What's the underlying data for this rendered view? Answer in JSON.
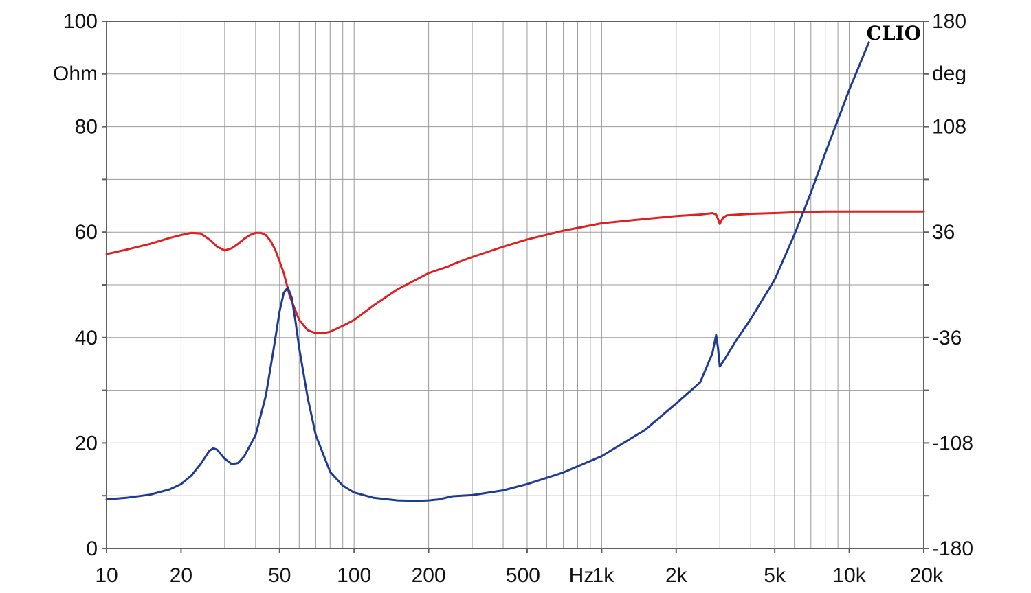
{
  "chart_data": {
    "type": "line",
    "watermark": "CLIO",
    "title": "",
    "x_axis": {
      "scale": "log",
      "range": [
        10,
        20000
      ],
      "unit_label": "Hz",
      "ticks": [
        {
          "value": 10,
          "label": "10"
        },
        {
          "value": 20,
          "label": "20"
        },
        {
          "value": 50,
          "label": "50"
        },
        {
          "value": 100,
          "label": "100"
        },
        {
          "value": 200,
          "label": "200"
        },
        {
          "value": 500,
          "label": "500"
        },
        {
          "value": 1000,
          "label": "1k"
        },
        {
          "value": 2000,
          "label": "2k"
        },
        {
          "value": 5000,
          "label": "5k"
        },
        {
          "value": 10000,
          "label": "10k"
        },
        {
          "value": 20000,
          "label": "20k"
        }
      ]
    },
    "y_left": {
      "unit_label": "Ohm",
      "range": [
        0,
        100
      ],
      "ticks": [
        {
          "value": 0,
          "label": "0"
        },
        {
          "value": 20,
          "label": "20"
        },
        {
          "value": 40,
          "label": "40"
        },
        {
          "value": 60,
          "label": "60"
        },
        {
          "value": 80,
          "label": "80"
        },
        {
          "value": 100,
          "label": "100"
        }
      ]
    },
    "y_right": {
      "unit_label": "deg",
      "range": [
        -180,
        180
      ],
      "ticks": [
        {
          "value": -180,
          "label": "-180"
        },
        {
          "value": -108,
          "label": "-108"
        },
        {
          "value": -36,
          "label": "-36"
        },
        {
          "value": 36,
          "label": "36"
        },
        {
          "value": 108,
          "label": "108"
        },
        {
          "value": 180,
          "label": "180"
        }
      ]
    },
    "grid": true,
    "series": [
      {
        "axis": "left",
        "color": "#1f3a93",
        "x": [
          10,
          12,
          15,
          18,
          20,
          22,
          24,
          26,
          27,
          28,
          30,
          32,
          34,
          36,
          40,
          44,
          47,
          50,
          52,
          54,
          56,
          58,
          60,
          65,
          70,
          80,
          90,
          100,
          120,
          150,
          180,
          200,
          220,
          250,
          300,
          400,
          500,
          700,
          1000,
          1500,
          2000,
          2500,
          2800,
          2900,
          2950,
          3000,
          3100,
          3500,
          4000,
          5000,
          6000,
          7000,
          8000,
          10000,
          12000
        ],
        "y": [
          9.3,
          9.6,
          10.2,
          11.2,
          12.2,
          13.8,
          16.0,
          18.5,
          19.0,
          18.7,
          17.0,
          16.0,
          16.2,
          17.5,
          21.5,
          29.0,
          37.0,
          45.0,
          48.5,
          49.5,
          47.5,
          43.0,
          38.0,
          28.5,
          21.5,
          14.5,
          11.9,
          10.6,
          9.6,
          9.1,
          9.0,
          9.1,
          9.3,
          9.9,
          10.1,
          11.0,
          12.2,
          14.4,
          17.5,
          22.5,
          27.5,
          31.5,
          37.0,
          40.5,
          38.0,
          34.5,
          35.5,
          39.5,
          43.5,
          51.0,
          59.5,
          67.5,
          75.0,
          87.0,
          96.0
        ]
      },
      {
        "axis": "right",
        "color": "#e02020",
        "x": [
          10,
          12,
          15,
          18,
          20,
          22,
          24,
          26,
          28,
          30,
          32,
          34,
          36,
          38,
          40,
          42,
          44,
          46,
          48,
          50,
          52,
          55,
          60,
          65,
          70,
          75,
          80,
          90,
          100,
          120,
          150,
          200,
          240,
          250,
          300,
          400,
          500,
          700,
          1000,
          1500,
          2000,
          2500,
          2800,
          2900,
          2950,
          3000,
          3050,
          3100,
          3200,
          4000,
          5000,
          6000,
          8000,
          10000,
          20000
        ],
        "y": [
          21,
          24,
          28,
          32,
          34,
          35.5,
          35,
          31,
          26,
          23.5,
          25,
          28,
          31.5,
          34,
          35.5,
          35.5,
          34,
          30,
          24,
          16,
          8,
          -8,
          -24,
          -31,
          -33,
          -33,
          -32,
          -28,
          -24,
          -14,
          -3,
          8,
          12.5,
          14,
          19,
          26,
          31,
          37,
          42,
          45,
          47,
          48,
          49,
          48,
          45,
          41.5,
          44,
          46,
          47.5,
          48.5,
          49,
          49.5,
          50,
          50,
          50
        ]
      }
    ]
  }
}
